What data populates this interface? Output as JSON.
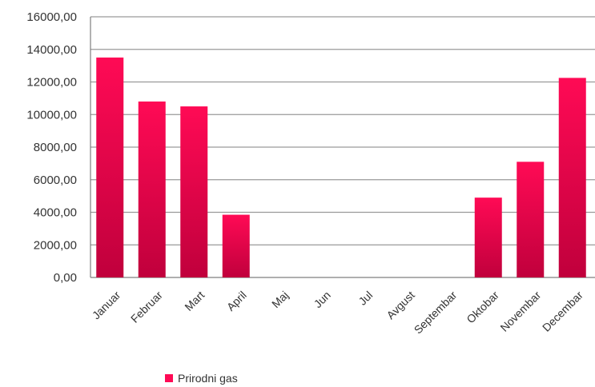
{
  "chart_data": {
    "type": "bar",
    "categories": [
      "Januar",
      "Februar",
      "Mart",
      "April",
      "Maj",
      "Jun",
      "Jul",
      "Avgust",
      "Septembar",
      "Oktobar",
      "Novembar",
      "Decembar"
    ],
    "series": [
      {
        "name": "Prirodni gas",
        "values": [
          13500,
          10800,
          10500,
          3850,
          0,
          0,
          0,
          0,
          0,
          4900,
          7100,
          12250
        ]
      }
    ],
    "ylim": [
      0,
      16000
    ],
    "yticks": [
      0,
      2000,
      4000,
      6000,
      8000,
      10000,
      12000,
      14000,
      16000
    ],
    "ytick_labels": [
      "0,00",
      "2000,00",
      "4000,00",
      "6000,00",
      "8000,00",
      "10000,00",
      "12000,00",
      "14000,00",
      "16000,00"
    ],
    "grid": true,
    "legend_position": "bottom-left",
    "colors": {
      "bar_top": "#ff0a55",
      "bar_bottom": "#c0003c",
      "grid": "#9a9a9a",
      "axis": "#7f7f7f"
    }
  }
}
